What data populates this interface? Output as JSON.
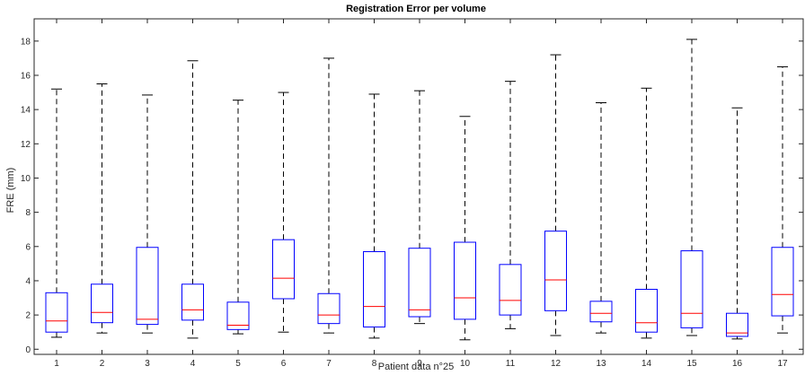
{
  "chart_data": {
    "type": "box",
    "title": "Registration Error per volume",
    "xlabel": "Patient data n°25",
    "ylabel": "FRE (mm)",
    "ylim": [
      -0.3,
      19.3
    ],
    "yticks": [
      0,
      2,
      4,
      6,
      8,
      10,
      12,
      14,
      16,
      18
    ],
    "grid": false,
    "categories": [
      "1",
      "2",
      "3",
      "4",
      "5",
      "6",
      "7",
      "8",
      "9",
      "10",
      "11",
      "12",
      "13",
      "14",
      "15",
      "16",
      "17"
    ],
    "boxes": [
      {
        "category": "1",
        "whisker_low": 0.7,
        "q1": 1.0,
        "median": 1.65,
        "q3": 3.3,
        "whisker_high": 15.2
      },
      {
        "category": "2",
        "whisker_low": 0.95,
        "q1": 1.55,
        "median": 2.15,
        "q3": 3.8,
        "whisker_high": 15.5
      },
      {
        "category": "3",
        "whisker_low": 0.95,
        "q1": 1.45,
        "median": 1.75,
        "q3": 5.95,
        "whisker_high": 14.85
      },
      {
        "category": "4",
        "whisker_low": 0.65,
        "q1": 1.7,
        "median": 2.3,
        "q3": 3.8,
        "whisker_high": 16.85
      },
      {
        "category": "5",
        "whisker_low": 0.9,
        "q1": 1.15,
        "median": 1.4,
        "q3": 2.75,
        "whisker_high": 14.55
      },
      {
        "category": "6",
        "whisker_low": 1.0,
        "q1": 2.95,
        "median": 4.15,
        "q3": 6.4,
        "whisker_high": 15.0
      },
      {
        "category": "7",
        "whisker_low": 0.95,
        "q1": 1.5,
        "median": 2.0,
        "q3": 3.25,
        "whisker_high": 17.0
      },
      {
        "category": "8",
        "whisker_low": 0.65,
        "q1": 1.3,
        "median": 2.5,
        "q3": 5.7,
        "whisker_high": 14.9
      },
      {
        "category": "9",
        "whisker_low": 1.5,
        "q1": 1.9,
        "median": 2.3,
        "q3": 5.9,
        "whisker_high": 15.1
      },
      {
        "category": "10",
        "whisker_low": 0.55,
        "q1": 1.75,
        "median": 3.0,
        "q3": 6.25,
        "whisker_high": 13.6
      },
      {
        "category": "11",
        "whisker_low": 1.2,
        "q1": 2.0,
        "median": 2.85,
        "q3": 4.95,
        "whisker_high": 15.65
      },
      {
        "category": "12",
        "whisker_low": 0.8,
        "q1": 2.25,
        "median": 4.05,
        "q3": 6.9,
        "whisker_high": 17.2
      },
      {
        "category": "13",
        "whisker_low": 0.95,
        "q1": 1.6,
        "median": 2.1,
        "q3": 2.8,
        "whisker_high": 14.4
      },
      {
        "category": "14",
        "whisker_low": 0.65,
        "q1": 1.0,
        "median": 1.55,
        "q3": 3.5,
        "whisker_high": 15.25
      },
      {
        "category": "15",
        "whisker_low": 0.8,
        "q1": 1.25,
        "median": 2.1,
        "q3": 5.75,
        "whisker_high": 18.1
      },
      {
        "category": "16",
        "whisker_low": 0.6,
        "q1": 0.75,
        "median": 0.95,
        "q3": 2.1,
        "whisker_high": 14.1
      },
      {
        "category": "17",
        "whisker_low": 0.95,
        "q1": 1.95,
        "median": 3.2,
        "q3": 5.95,
        "whisker_high": 16.5
      }
    ],
    "colors": {
      "box": "#0000ff",
      "median": "#ff0000",
      "whisker": "#000000",
      "axis": "#262626"
    }
  }
}
